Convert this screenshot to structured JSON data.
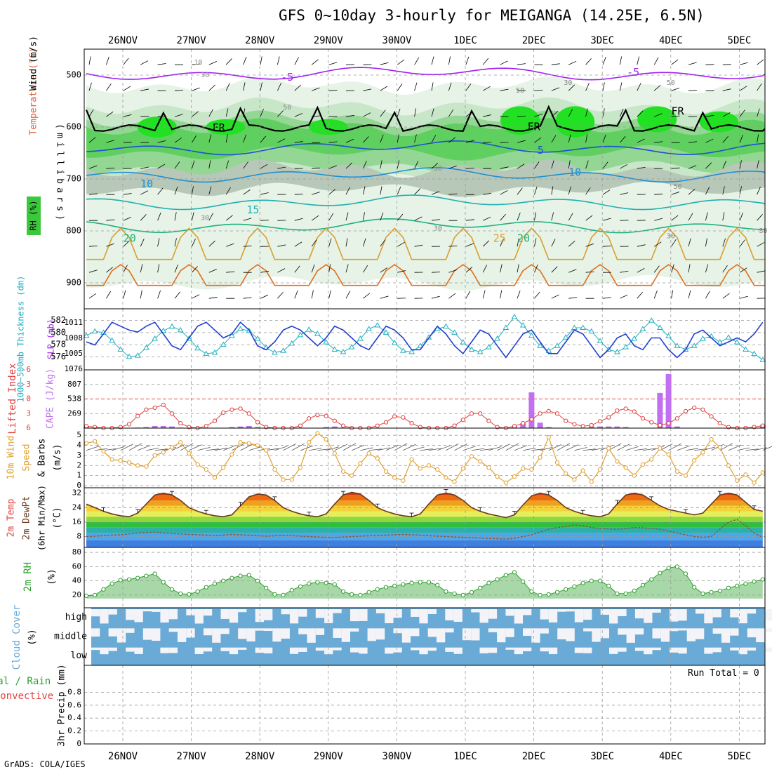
{
  "title": "GFS 0~10day 3-hourly for MEIGANGA (14.25E, 6.5N)",
  "credit": "GrADS: COLA/IGES",
  "colors": {
    "rh_green": "#3cc83c",
    "temp_purple": "#a020f0",
    "slp_blue": "#1f3fd0",
    "thickness_cyan": "#20b0c0",
    "cape_violet": "#c070f0",
    "lifted_red": "#e04040",
    "wind_orange": "#e0a030",
    "rh2m_green": "#2ea02e",
    "cloud_blue": "#6aaad6",
    "grid_gray": "#999999"
  },
  "chart_data": [
    {
      "type": "heatmap",
      "name": "upper-air",
      "xaxis_labels": [
        "26NOV",
        "27NOV",
        "28NOV",
        "29NOV",
        "30NOV",
        "1DEC",
        "2DEC",
        "3DEC",
        "4DEC",
        "5DEC"
      ],
      "ylabel": "millibars",
      "ylabel_chars": [
        "(",
        "m",
        "i",
        "l",
        "l",
        "i",
        "b",
        "a",
        "r",
        "s",
        ")"
      ],
      "legend_labels": [
        "Temperature (°C)",
        "Wind (m/s)",
        "RH (%)"
      ],
      "yticks": [
        "500",
        "600",
        "700",
        "800",
        "900"
      ],
      "ylim": [
        450,
        950
      ],
      "temperature_levels": [
        {
          "value": -5,
          "level": 497,
          "color": "#a020f0"
        },
        {
          "value": 0,
          "level": 602,
          "color": "#000000"
        },
        {
          "value": 5,
          "level": 640,
          "color": "#1f50d0"
        },
        {
          "value": 10,
          "level": 692,
          "color": "#1f90d0"
        },
        {
          "value": 15,
          "level": 745,
          "color": "#20b0b0"
        },
        {
          "value": 20,
          "level": 790,
          "color": "#20b080"
        },
        {
          "value": 25,
          "level": 855,
          "color": "#d8a030"
        },
        {
          "value": 30,
          "level": 905,
          "color": "#e07020"
        }
      ],
      "contour_labels": [
        {
          "text": "-5",
          "level": 505,
          "day": 2.4,
          "color": "#a020f0"
        },
        {
          "text": "-5",
          "level": 495,
          "day": 7.45,
          "color": "#a020f0"
        },
        {
          "text": "FR",
          "level": 602,
          "day": 1.4,
          "color": "#000000"
        },
        {
          "text": "FR",
          "level": 600,
          "day": 6.0,
          "color": "#000000"
        },
        {
          "text": "FR",
          "level": 570,
          "day": 8.1,
          "color": "#000000"
        },
        {
          "text": "5",
          "level": 645,
          "day": 6.1,
          "color": "#1f50d0"
        },
        {
          "text": "10",
          "level": 710,
          "day": 0.35,
          "color": "#1f90d0"
        },
        {
          "text": "10",
          "level": 688,
          "day": 6.6,
          "color": "#1f90d0"
        },
        {
          "text": "15",
          "level": 760,
          "day": 1.9,
          "color": "#20b0b0"
        },
        {
          "text": "20",
          "level": 815,
          "day": 0.1,
          "color": "#20b080"
        },
        {
          "text": "20",
          "level": 815,
          "day": 5.85,
          "color": "#20b080"
        },
        {
          "text": "25",
          "level": 815,
          "day": 5.5,
          "color": "#d8a030"
        },
        {
          "text": "10",
          "level": 476,
          "day": 1.1,
          "color": "#888888"
        },
        {
          "text": "30",
          "level": 500,
          "day": 1.2,
          "color": "#888888"
        },
        {
          "text": "50",
          "level": 562,
          "day": 2.4,
          "color": "#888888"
        },
        {
          "text": "50",
          "level": 530,
          "day": 5.8,
          "color": "#888888"
        },
        {
          "text": "30",
          "level": 515,
          "day": 6.5,
          "color": "#888888"
        },
        {
          "text": "50",
          "level": 515,
          "day": 8.0,
          "color": "#888888"
        },
        {
          "text": "50",
          "level": 680,
          "day": 4.6,
          "color": "#888888"
        },
        {
          "text": "50",
          "level": 715,
          "day": 8.1,
          "color": "#888888"
        },
        {
          "text": "30",
          "level": 775,
          "day": 1.2,
          "color": "#888888"
        },
        {
          "text": "30",
          "level": 795,
          "day": 4.6,
          "color": "#888888"
        },
        {
          "text": "30",
          "level": 810,
          "day": 8.0,
          "color": "#888888"
        },
        {
          "text": "30",
          "level": 800,
          "day": 9.35,
          "color": "#888888"
        }
      ]
    },
    {
      "type": "line",
      "name": "slp-thickness",
      "ylabel_left": "1000~500mb Thickness (dm)",
      "ylabel_right": "SLP (mb)",
      "thickness_ticks": [
        "582",
        "580",
        "578",
        "576"
      ],
      "slp_ticks": [
        "1011",
        "1008",
        "1005",
        "1076"
      ],
      "thickness_ylim": [
        575,
        583
      ],
      "series": [
        {
          "name": "SLP (mb)",
          "unit": "mb",
          "values": [
            1007,
            1006.2,
            1009,
            1012,
            1011,
            1010,
            1009.5,
            1011,
            1012,
            1009,
            1006,
            1005,
            1008,
            1011,
            1012,
            1010,
            1008,
            1009,
            1012,
            1010,
            1006,
            1005,
            1007,
            1010,
            1011,
            1010,
            1008,
            1006,
            1008,
            1011,
            1010,
            1008,
            1006,
            1005,
            1008,
            1011,
            1010,
            1008,
            1005,
            1005,
            1008,
            1011,
            1009,
            1006,
            1004,
            1007,
            1010,
            1009,
            1006,
            1003,
            1006,
            1009,
            1010,
            1007,
            1004,
            1004,
            1007,
            1010,
            1009,
            1006,
            1003,
            1005,
            1008,
            1009,
            1006,
            1005,
            1008,
            1008,
            1005,
            1003,
            1005,
            1009,
            1010,
            1008,
            1006,
            1007,
            1008,
            1007,
            1009,
            1012
          ]
        },
        {
          "name": "Thickness (dm)",
          "unit": "dm",
          "values": [
            579.5,
            580.2,
            580,
            578.7,
            577.2,
            576,
            576.2,
            577.5,
            579,
            580.3,
            581,
            580.4,
            579,
            577.4,
            576.5,
            576.7,
            578,
            579.5,
            580.6,
            580.3,
            579,
            577.5,
            576.7,
            577,
            578.2,
            579.6,
            580.5,
            579.8,
            578.4,
            577.2,
            576.8,
            577.6,
            579,
            580.6,
            581.2,
            580,
            578.3,
            577,
            576.8,
            577.8,
            579.2,
            580.6,
            581,
            580,
            578.4,
            577.2,
            576.8,
            577.6,
            579,
            580.8,
            582.6,
            581.2,
            579.5,
            577.8,
            577,
            577.8,
            579.2,
            580.8,
            580.8,
            580.2,
            578.6,
            577.2,
            576.8,
            577.6,
            579,
            580.6,
            582,
            580.8,
            579.4,
            577.8,
            577.2,
            577.8,
            579,
            579.4,
            578.4,
            579.2,
            578.4,
            577.2,
            576.5,
            575.5
          ]
        }
      ]
    },
    {
      "type": "bar",
      "name": "cape-li",
      "ylabel_left": "Lifted Index",
      "ylabel_right": "CAPE (J/kg)",
      "li_ticks": [
        "-6",
        "-3",
        "0",
        "3",
        "6"
      ],
      "cape_ticks": [
        "807",
        "538",
        "269"
      ],
      "cape_ylim": [
        0,
        1076
      ],
      "li_ylim": [
        -6,
        6
      ],
      "series": [
        {
          "name": "CAPE (J/kg)",
          "values": [
            20,
            10,
            0,
            0,
            0,
            0,
            10,
            20,
            40,
            40,
            30,
            10,
            0,
            0,
            0,
            0,
            0,
            20,
            30,
            40,
            20,
            0,
            0,
            0,
            0,
            0,
            0,
            0,
            20,
            30,
            10,
            0,
            0,
            0,
            0,
            0,
            0,
            0,
            0,
            0,
            0,
            0,
            0,
            0,
            0,
            0,
            0,
            0,
            0,
            0,
            30,
            90,
            660,
            100,
            20,
            0,
            0,
            0,
            0,
            30,
            30,
            30,
            30,
            20,
            0,
            0,
            0,
            650,
            1000,
            30,
            0,
            0,
            0,
            0,
            0,
            0,
            0,
            0,
            0,
            60
          ]
        },
        {
          "name": "Lifted Index",
          "values": [
            5.6,
            5.8,
            6,
            6,
            5.8,
            5.2,
            3.5,
            2.2,
            1.8,
            1.2,
            3,
            5,
            5.8,
            6,
            5.6,
            4.5,
            2.8,
            2.2,
            2,
            3,
            4.8,
            5.8,
            6,
            6,
            6,
            5.5,
            4,
            3.3,
            3.5,
            4.5,
            5.5,
            6,
            6,
            6,
            5.5,
            4.8,
            3.6,
            3.8,
            5,
            5.8,
            6,
            6,
            6,
            5.5,
            4.3,
            3,
            3,
            4.5,
            5.8,
            6,
            5.6,
            5,
            4.2,
            3,
            2.5,
            3,
            4.5,
            5.2,
            5.6,
            5.4,
            4.6,
            3.8,
            2.4,
            2,
            2.6,
            4,
            4.8,
            5.4,
            5,
            4,
            2.5,
            1.8,
            2.2,
            3.6,
            5,
            5.8,
            6,
            6,
            5.8,
            5.5
          ]
        }
      ]
    },
    {
      "type": "line",
      "name": "wind10m",
      "ylabel": "10m Wind Speed & Barbs (m/s)",
      "yticks": [
        "5",
        "4",
        "3",
        "2",
        "1",
        "0"
      ],
      "ylim": [
        0,
        5.5
      ],
      "series": [
        {
          "name": "10m Wind Speed (m/s)",
          "values": [
            4.2,
            4.4,
            3.4,
            2.6,
            2.5,
            2.3,
            2.0,
            1.9,
            3.0,
            3.3,
            3.8,
            4.3,
            3.2,
            2.1,
            1.6,
            0.8,
            1.8,
            3.1,
            4.3,
            4.2,
            4.0,
            3.5,
            1.6,
            0.6,
            0.6,
            1.8,
            4.3,
            5.2,
            4.6,
            3.2,
            1.4,
            1.0,
            2.2,
            3.2,
            2.7,
            1.4,
            0.8,
            0.5,
            2.6,
            1.7,
            2.0,
            1.6,
            0.8,
            0.4,
            1.7,
            2.9,
            2.4,
            1.8,
            0.9,
            0.3,
            0.9,
            1.7,
            1.6,
            2.8,
            4.8,
            2.3,
            1.2,
            0.6,
            1.5,
            0.4,
            1.6,
            3.7,
            2.4,
            1.8,
            1.0,
            2.1,
            2.6,
            3.7,
            3.1,
            1.4,
            1.0,
            2.5,
            3.3,
            4.6,
            3.8,
            2.0,
            0.5,
            1.1,
            0.3,
            1.3
          ]
        }
      ]
    },
    {
      "type": "area",
      "name": "temp2m",
      "ylabel": "2m Temp 2m DewPt (6hr Min/Max) (°C)",
      "yticks": [
        "32",
        "24",
        "16",
        "8"
      ],
      "ylim": [
        2,
        35
      ],
      "series": [
        {
          "name": "2m Temp (°C)",
          "values": [
            26,
            24,
            22,
            20.5,
            19.5,
            19,
            21,
            26,
            31,
            32,
            31,
            28,
            24,
            22,
            20.5,
            19.5,
            19,
            20,
            25,
            30,
            31.5,
            31,
            28,
            24,
            22,
            20.5,
            19.5,
            19,
            20.5,
            26,
            31,
            32.5,
            31.5,
            28,
            24,
            22,
            20.5,
            19.5,
            19,
            20.5,
            26,
            31,
            32,
            31,
            28,
            24,
            22,
            20.5,
            19.5,
            18.5,
            20,
            25.5,
            30.5,
            32,
            31,
            28,
            24,
            22,
            20.5,
            19.5,
            19,
            20.5,
            26,
            31,
            32,
            31,
            28,
            25,
            23,
            22,
            21,
            20,
            21,
            26,
            31,
            32,
            31,
            27,
            23,
            22
          ]
        },
        {
          "name": "2m DewPt (°C)",
          "values": [
            8,
            8.2,
            8.5,
            8.8,
            9,
            9.5,
            10,
            10.2,
            10.5,
            10,
            9.8,
            9.5,
            9.2,
            9,
            8.8,
            8.5,
            8.8,
            9.2,
            9,
            8.8,
            8.5,
            8.2,
            8.4,
            8.6,
            8.5,
            8.2,
            8.0,
            7.8,
            7.6,
            7.5,
            7.8,
            8,
            8.2,
            8.4,
            8.6,
            8.8,
            9,
            9.2,
            9,
            8.8,
            8.5,
            8.2,
            8,
            7.8,
            7.6,
            7.4,
            7.2,
            7,
            6.8,
            6.6,
            7,
            8,
            9,
            10.5,
            12,
            13,
            13.5,
            14.5,
            14,
            13,
            12.5,
            12.2,
            12,
            12.5,
            13,
            12.8,
            12.5,
            12,
            11,
            10,
            9,
            8,
            7.6,
            8,
            12,
            16,
            17.5,
            14,
            10,
            7.5
          ]
        }
      ]
    },
    {
      "type": "area",
      "name": "rh2m",
      "ylabel": "2m RH (%)",
      "yticks": [
        "80",
        "60",
        "40",
        "20"
      ],
      "ylim": [
        10,
        85
      ],
      "series": [
        {
          "name": "2m RH (%)",
          "values": [
            19,
            20,
            28,
            36,
            41,
            42,
            44,
            47,
            50,
            38,
            28,
            22,
            21,
            25,
            31,
            36,
            40,
            44,
            47,
            48,
            40,
            30,
            21,
            20,
            27,
            32,
            36,
            38,
            37,
            35,
            25,
            21,
            20,
            24,
            28,
            31,
            33,
            35,
            37,
            38,
            38,
            34,
            25,
            22,
            20,
            24,
            30,
            37,
            42,
            48,
            52,
            39,
            25,
            20,
            21,
            24,
            28,
            32,
            37,
            40,
            40,
            33,
            22,
            22,
            26,
            34,
            42,
            51,
            58,
            60,
            50,
            31,
            22,
            24,
            26,
            30,
            33,
            36,
            39,
            42
          ]
        }
      ]
    },
    {
      "type": "table",
      "name": "cloud-cover",
      "ylabel": "Cloud Cover (%)",
      "rows": [
        "high",
        "middle",
        "low"
      ],
      "coverage_pct": [
        85,
        70,
        95
      ]
    },
    {
      "type": "bar",
      "name": "precip",
      "ylabel_left": "Total / Rain Convective",
      "ylabel": "3hr Precip (mm)",
      "yticks": [
        "0.8",
        "0.6",
        "0.4",
        "0.2",
        "0"
      ],
      "ylim": [
        0,
        1
      ],
      "run_total_label": "Run Total = 0",
      "values": []
    }
  ]
}
